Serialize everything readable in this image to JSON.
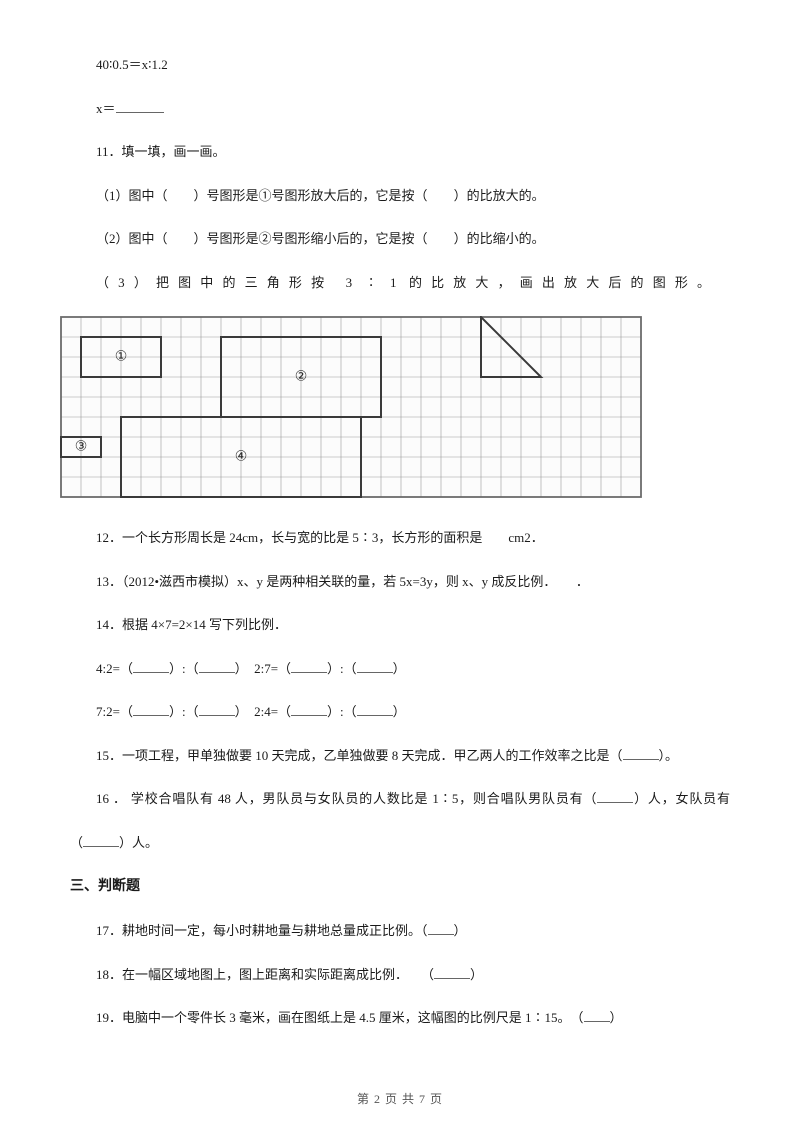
{
  "q10": {
    "line1": "40∶0.5＝x∶1.2",
    "line2_pre": "x＝"
  },
  "q11": {
    "title": "11．填一填，画一画。",
    "sub1_a": "（1）图中（",
    "sub1_b": "）号图形是①号图形放大后的，它是按（",
    "sub1_c": "）的比放大的。",
    "sub2_a": "（2）图中（",
    "sub2_b": "）号图形是②号图形缩小后的，它是按（",
    "sub2_c": "）的比缩小的。",
    "sub3_a": "（3）把图中的三角形按 3",
    "sub3_colon": "∶",
    "sub3_b": "1 的比放大，画出放大后的图形。"
  },
  "grid": {
    "cols": 29,
    "rows": 9,
    "cell": 20,
    "border_color": "#6b6b6b",
    "grid_color": "#9a9a9a",
    "rect_color": "#3a3a3a",
    "label_color": "#2a2a2a",
    "bg": "#fcfcfc",
    "shapes": {
      "rect1": {
        "c": 1,
        "r": 1,
        "w": 4,
        "h": 2,
        "label": "①"
      },
      "rect2": {
        "c": 8,
        "r": 1,
        "w": 8,
        "h": 4,
        "label": "②"
      },
      "triangle": {
        "c": 21,
        "r": 0,
        "w": 3,
        "h": 3
      },
      "rect3": {
        "c": 0,
        "r": 6,
        "w": 2,
        "h": 1,
        "label": "③"
      },
      "rect4": {
        "c": 3,
        "r": 5,
        "w": 12,
        "h": 4,
        "label": "④"
      }
    }
  },
  "q12": "12．一个长方形周长是 24cm，长与宽的比是 5∶3，长方形的面积是　　cm2．",
  "q13": "13．（2012•滋西市模拟）x、y 是两种相关联的量，若 5x=3y，则 x、y 成反比例．　　．",
  "q14": {
    "title": "14．根据 4×7=2×14 写下列比例．",
    "l1_a": "4:2=（",
    "l1_b": "）:（",
    "l1_c": "）　2:7=（",
    "l1_d": "）:（",
    "l1_e": "）",
    "l2_a": "7:2=（",
    "l2_b": "）:（",
    "l2_c": "）　2:4=（",
    "l2_d": "）:（",
    "l2_e": "）"
  },
  "q15_a": "15．一项工程，甲单独做要 10 天完成，乙单独做要 8 天完成．甲乙两人的工作效率之比是（",
  "q15_b": "）。",
  "q16_a": "16 ． 学校合唱队有 48 人，男队员与女队员的人数比是 1∶5，则合唱队男队员有（",
  "q16_b": "）人，女队员有",
  "q16_c": "（",
  "q16_d": "）人。",
  "sec3": "三、判断题",
  "q17_a": "17．耕地时间一定，每小时耕地量与耕地总量成正比例。（",
  "q17_b": "）",
  "q18_a": "18．在一幅区域地图上，图上距离和实际距离成比例．　　（",
  "q18_b": "）",
  "q19_a": "19．电脑中一个零件长 3 毫米，画在图纸上是 4.5 厘米，这幅图的比例尺是 1∶15。　（",
  "q19_b": "）",
  "footer": "第 2 页 共 7 页"
}
